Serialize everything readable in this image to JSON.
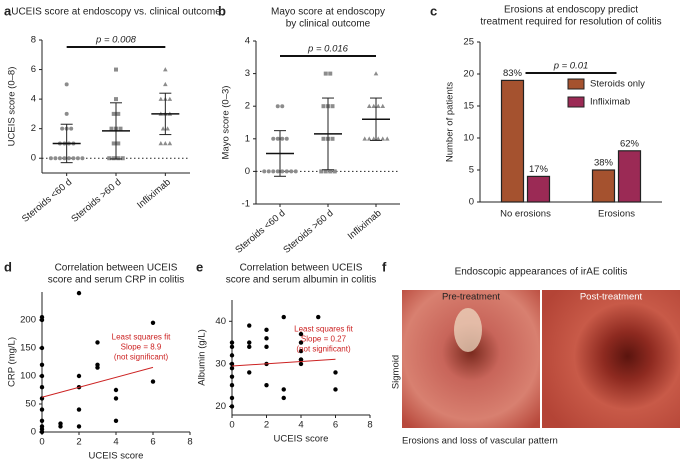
{
  "chart_data": [
    {
      "type": "dotplot",
      "panel": "a",
      "title": [
        "UCEIS score at endoscopy vs. clinical outcome"
      ],
      "ylabel": "UCEIS score (0–8)",
      "categories": [
        "Steroids <60 d",
        "Steroids >60 d",
        "Infliximab"
      ],
      "markers": [
        "circle",
        "square",
        "triangle"
      ],
      "color": "#8c8c8c",
      "points": [
        [
          0,
          0,
          0,
          0,
          0,
          0,
          0,
          0,
          1,
          1,
          1,
          1,
          2,
          2,
          2,
          3,
          5
        ],
        [
          0,
          0,
          0,
          0,
          1,
          1,
          2,
          2,
          2,
          3,
          3,
          4,
          6
        ],
        [
          1,
          1,
          1,
          2,
          2,
          3,
          3,
          3,
          4,
          4,
          4,
          5,
          6
        ]
      ],
      "mean": [
        1.0,
        1.85,
        3.0
      ],
      "sd": [
        1.3,
        1.9,
        1.4
      ],
      "ylim": [
        -1,
        8
      ],
      "yticks": [
        0,
        2,
        4,
        6,
        8
      ],
      "zero_line": true,
      "p_value_label": "p = 0.008"
    },
    {
      "type": "dotplot",
      "panel": "b",
      "title": [
        "Mayo score at endoscopy",
        "by clinical outcome"
      ],
      "ylabel": "Mayo score (0–3)",
      "categories": [
        "Steroids <60 d",
        "Steroids >60 d",
        "Infliximab"
      ],
      "markers": [
        "circle",
        "square",
        "triangle"
      ],
      "color": "#8c8c8c",
      "points": [
        [
          0,
          0,
          0,
          0,
          0,
          0,
          0,
          0,
          1,
          1,
          1,
          1,
          2,
          2
        ],
        [
          0,
          0,
          0,
          0,
          1,
          1,
          1,
          2,
          2,
          2,
          3,
          3
        ],
        [
          1,
          1,
          1,
          1,
          1,
          1,
          2,
          2,
          2,
          2,
          3
        ]
      ],
      "mean": [
        0.55,
        1.15,
        1.6
      ],
      "sd": [
        0.7,
        1.1,
        0.65
      ],
      "ylim": [
        -1,
        4
      ],
      "yticks": [
        -1,
        0,
        1,
        2,
        3,
        4
      ],
      "zero_line": true,
      "p_value_label": "p = 0.016"
    },
    {
      "type": "bar",
      "panel": "c",
      "title": [
        "Erosions at endoscopy predict",
        "treatment required for resolution of colitis"
      ],
      "ylabel": "Number of patients",
      "categories": [
        "No erosions",
        "Erosions"
      ],
      "series": [
        {
          "name": "Steroids only",
          "color": "#a5522f",
          "values": [
            19,
            5
          ],
          "percent_labels": [
            "83%",
            "38%"
          ]
        },
        {
          "name": "Infliximab",
          "color": "#9b2a55",
          "values": [
            4,
            8
          ],
          "percent_labels": [
            "17%",
            "62%"
          ]
        }
      ],
      "ylim": [
        0,
        25
      ],
      "yticks": [
        0,
        5,
        10,
        15,
        20,
        25
      ],
      "legend": "right",
      "p_value_label": "p = 0.01"
    },
    {
      "type": "scatter",
      "panel": "d",
      "title": [
        "Correlation between UCEIS",
        "score and serum CRP in colitis"
      ],
      "xlabel": "UCEIS score",
      "ylabel": "CRP (mg/L)",
      "x": [
        0,
        0,
        0,
        0,
        0,
        0,
        0,
        0,
        0,
        0,
        0,
        0,
        1,
        1,
        2,
        2,
        2,
        2,
        2,
        3,
        3,
        3,
        4,
        4,
        4,
        6,
        6
      ],
      "y": [
        0,
        5,
        10,
        20,
        40,
        60,
        80,
        100,
        120,
        150,
        200,
        205,
        10,
        15,
        248,
        100,
        80,
        40,
        10,
        120,
        115,
        160,
        60,
        75,
        20,
        195,
        90
      ],
      "color": "#000000",
      "fit": {
        "x": [
          0,
          6
        ],
        "y": [
          62,
          115.4
        ]
      },
      "fit_color": "#cc2222",
      "fit_annotation": [
        "Least squares fit",
        "Slope = 8.9",
        "(not significant)"
      ],
      "xlim": [
        0,
        8
      ],
      "xticks": [
        0,
        2,
        4,
        6,
        8
      ],
      "ylim": [
        0,
        250
      ],
      "yticks": [
        0,
        50,
        100,
        150,
        200
      ]
    },
    {
      "type": "scatter",
      "panel": "e",
      "title": [
        "Correlation between UCEIS",
        "score and serum albumin in colitis"
      ],
      "xlabel": "UCEIS score",
      "ylabel": "Albumin (g/L)",
      "x": [
        0,
        0,
        0,
        0,
        0,
        0,
        0,
        0,
        0,
        1,
        1,
        1,
        1,
        2,
        2,
        2,
        2,
        2,
        3,
        3,
        3,
        4,
        4,
        4,
        4,
        4,
        4,
        5,
        6,
        6
      ],
      "y": [
        20,
        22,
        25,
        27,
        29,
        30,
        32,
        34,
        35,
        39,
        35,
        34,
        28,
        38,
        36,
        34,
        30,
        25,
        41,
        24,
        22,
        37,
        35,
        33,
        31,
        30,
        31,
        41,
        28,
        24
      ],
      "color": "#000000",
      "fit": {
        "x": [
          0,
          6
        ],
        "y": [
          29.5,
          31.1
        ]
      },
      "fit_color": "#cc2222",
      "fit_annotation": [
        "Least squares fit",
        "Slope = 0.27",
        "(not significant)"
      ],
      "xlim": [
        0,
        8
      ],
      "xticks": [
        0,
        2,
        4,
        6,
        8
      ],
      "ylim": [
        18,
        45
      ],
      "yticks": [
        20,
        30,
        40
      ]
    }
  ],
  "image_panel": {
    "panel": "f",
    "title": "Endoscopic appearances of irAE colitis",
    "left_caption": "Pre-treatment",
    "right_caption": "Post-treatment",
    "side_label": "Sigmoid",
    "footnote": "Erosions and loss of vascular pattern"
  }
}
